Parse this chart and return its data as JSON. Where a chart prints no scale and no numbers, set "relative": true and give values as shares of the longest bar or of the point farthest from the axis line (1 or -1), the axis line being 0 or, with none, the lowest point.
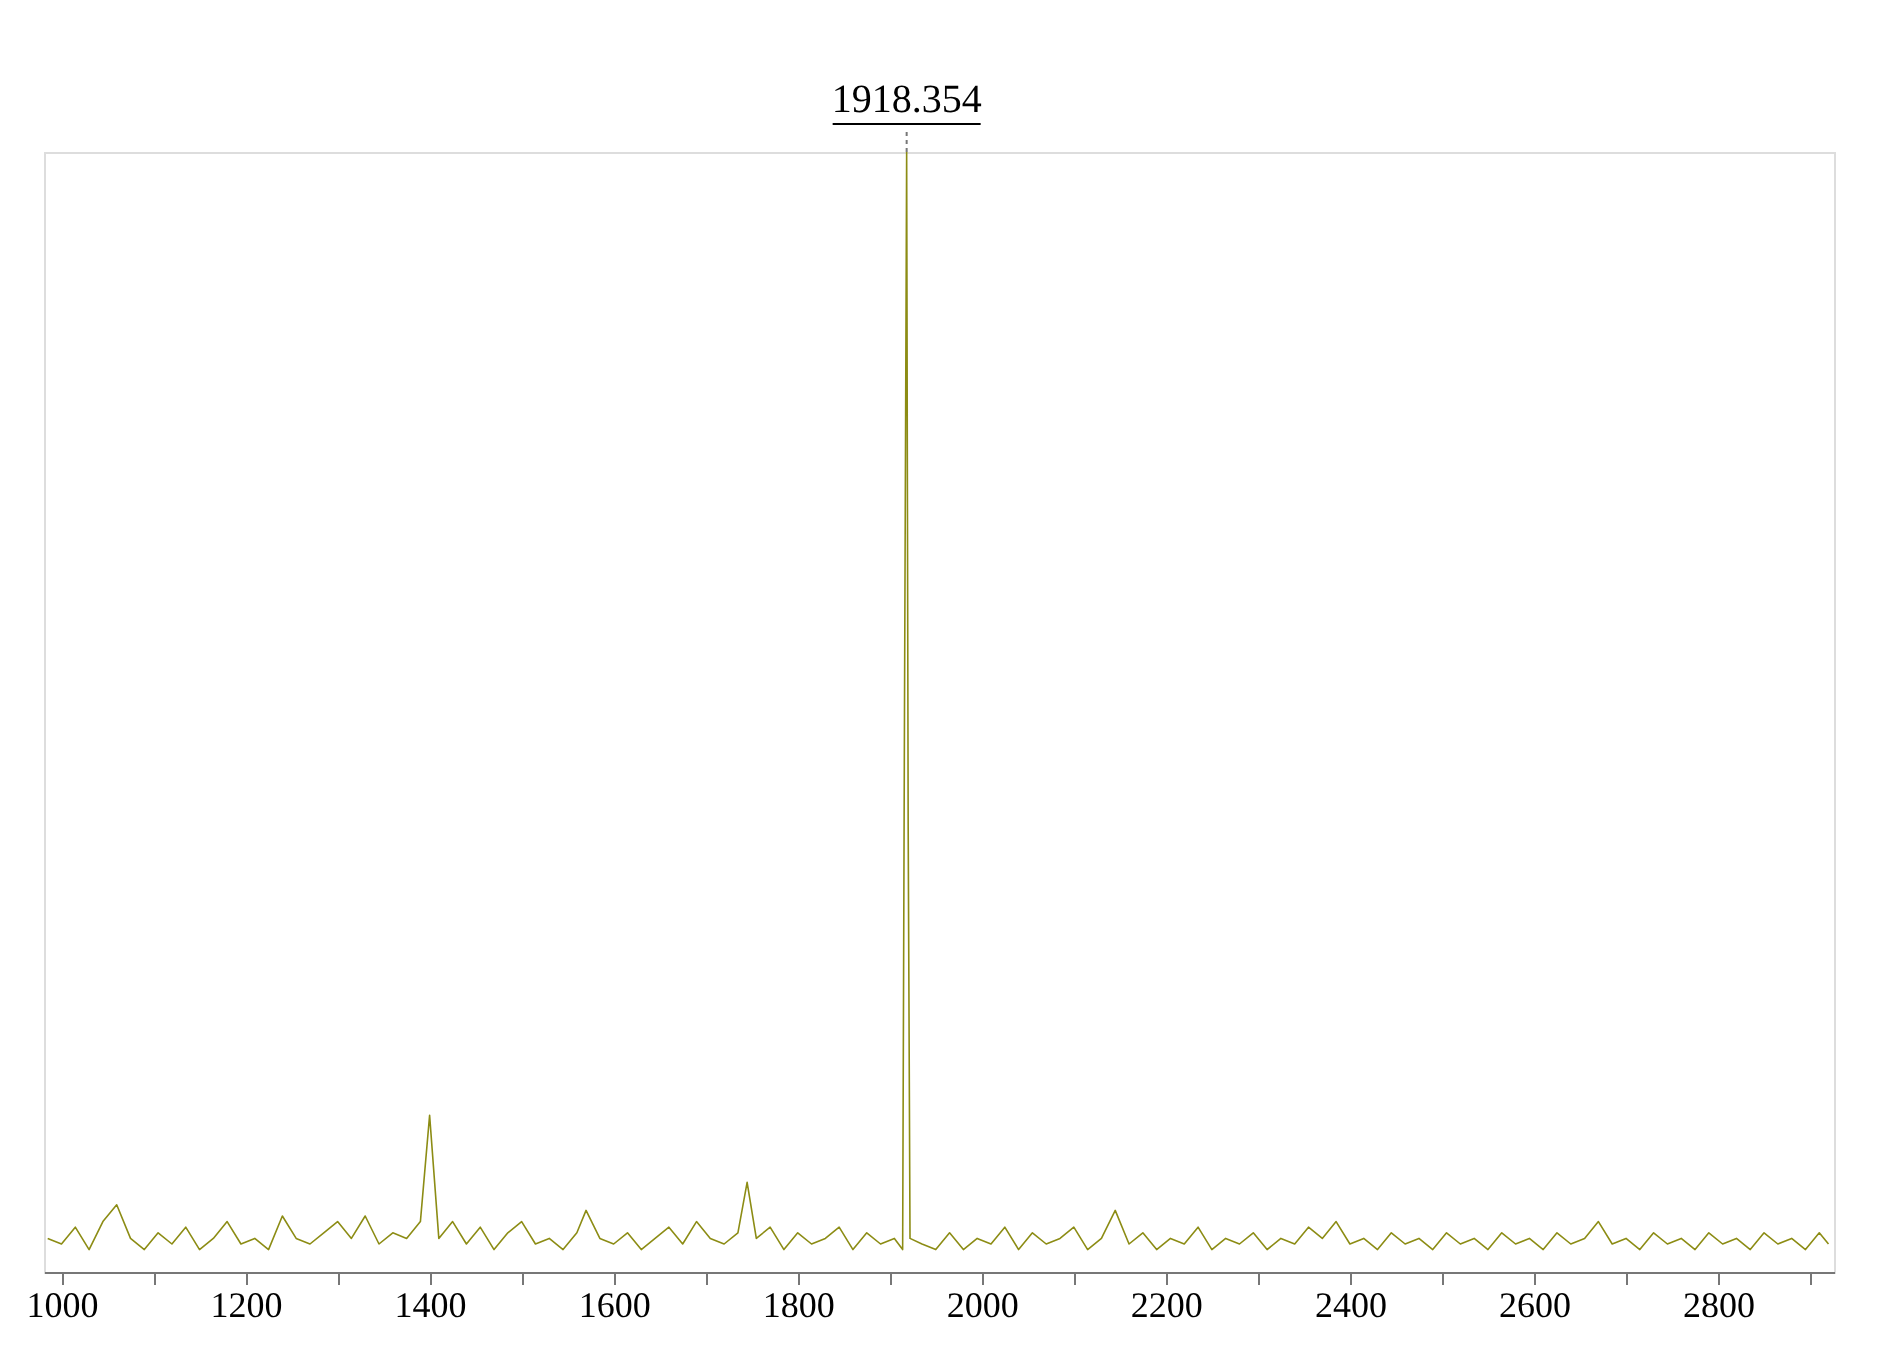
{
  "chart_data": {
    "type": "line",
    "relative": true,
    "xlim": [
      981,
      2926
    ],
    "xticks": [
      1000,
      {
        "value": 1100,
        "label": null
      },
      1200,
      {
        "value": 1300,
        "label": null
      },
      1400,
      {
        "value": 1500,
        "label": null
      },
      1600,
      {
        "value": 1700,
        "label": null
      },
      1800,
      {
        "value": 1900,
        "label": null
      },
      2000,
      {
        "value": 2100,
        "label": null
      },
      2200,
      {
        "value": 2300,
        "label": null
      },
      2400,
      {
        "value": 2500,
        "label": null
      },
      2600,
      {
        "value": 2700,
        "label": null
      },
      2800,
      {
        "value": 2900,
        "label": null
      }
    ],
    "grid": false,
    "marker": "none",
    "line_style": "solid",
    "annotations": [
      {
        "text": "1918.354",
        "x": 1918.354,
        "y": 1
      }
    ],
    "series": [
      {
        "color": "#8c8c14",
        "x": [
          985,
          1000,
          1015,
          1030,
          1045,
          1060,
          1075,
          1090,
          1105,
          1120,
          1135,
          1150,
          1165,
          1180,
          1195,
          1210,
          1225,
          1240,
          1255,
          1270,
          1285,
          1300,
          1315,
          1330,
          1345,
          1360,
          1375,
          1390,
          1400,
          1410,
          1425,
          1440,
          1455,
          1470,
          1485,
          1500,
          1515,
          1530,
          1545,
          1560,
          1570,
          1585,
          1600,
          1615,
          1630,
          1645,
          1660,
          1675,
          1690,
          1705,
          1720,
          1735,
          1745,
          1755,
          1770,
          1785,
          1800,
          1815,
          1830,
          1845,
          1860,
          1875,
          1890,
          1905,
          1914,
          1916,
          1918.354,
          1920,
          1922,
          1935,
          1950,
          1965,
          1980,
          1995,
          2010,
          2025,
          2040,
          2055,
          2070,
          2085,
          2100,
          2115,
          2130,
          2145,
          2160,
          2175,
          2190,
          2205,
          2220,
          2235,
          2250,
          2265,
          2280,
          2295,
          2310,
          2325,
          2340,
          2355,
          2370,
          2385,
          2400,
          2415,
          2430,
          2445,
          2460,
          2475,
          2490,
          2505,
          2520,
          2535,
          2550,
          2565,
          2580,
          2595,
          2610,
          2625,
          2640,
          2655,
          2670,
          2685,
          2700,
          2715,
          2730,
          2745,
          2760,
          2775,
          2790,
          2805,
          2820,
          2835,
          2850,
          2865,
          2880,
          2895,
          2910,
          2920
        ],
        "values": [
          0.03,
          0.025,
          0.04,
          0.02,
          0.045,
          0.06,
          0.03,
          0.02,
          0.035,
          0.025,
          0.04,
          0.02,
          0.03,
          0.045,
          0.025,
          0.03,
          0.02,
          0.05,
          0.03,
          0.025,
          0.035,
          0.045,
          0.03,
          0.05,
          0.025,
          0.035,
          0.03,
          0.045,
          0.14,
          0.03,
          0.045,
          0.025,
          0.04,
          0.02,
          0.035,
          0.045,
          0.025,
          0.03,
          0.02,
          0.035,
          0.055,
          0.03,
          0.025,
          0.035,
          0.02,
          0.03,
          0.04,
          0.025,
          0.045,
          0.03,
          0.025,
          0.035,
          0.08,
          0.03,
          0.04,
          0.02,
          0.035,
          0.025,
          0.03,
          0.04,
          0.02,
          0.035,
          0.025,
          0.03,
          0.02,
          0.5,
          1,
          0.4,
          0.03,
          0.025,
          0.02,
          0.035,
          0.02,
          0.03,
          0.025,
          0.04,
          0.02,
          0.035,
          0.025,
          0.03,
          0.04,
          0.02,
          0.03,
          0.055,
          0.025,
          0.035,
          0.02,
          0.03,
          0.025,
          0.04,
          0.02,
          0.03,
          0.025,
          0.035,
          0.02,
          0.03,
          0.025,
          0.04,
          0.03,
          0.045,
          0.025,
          0.03,
          0.02,
          0.035,
          0.025,
          0.03,
          0.02,
          0.035,
          0.025,
          0.03,
          0.02,
          0.035,
          0.025,
          0.03,
          0.02,
          0.035,
          0.025,
          0.03,
          0.045,
          0.025,
          0.03,
          0.02,
          0.035,
          0.025,
          0.03,
          0.02,
          0.035,
          0.025,
          0.03,
          0.02,
          0.035,
          0.025,
          0.03,
          0.02,
          0.035,
          0.025
        ]
      }
    ]
  }
}
